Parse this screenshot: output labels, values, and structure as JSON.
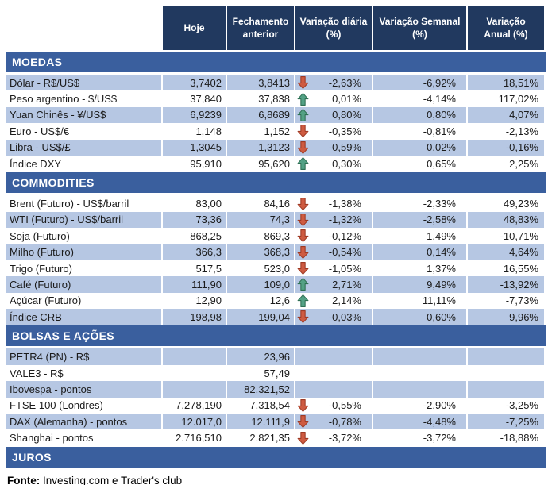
{
  "table": {
    "columns": [
      "Hoje",
      "Fechamento\nanterior",
      "Variação diária\n(%)",
      "Variação Semanal\n(%)",
      "Variação\nAnual (%)"
    ]
  },
  "sections": [
    {
      "title": "MOEDAS",
      "striped_first": true,
      "rows": [
        {
          "name": "Dólar - R$/US$",
          "hoje": "3,7402",
          "prev": "3,8413",
          "arrow": "down",
          "daily": "-2,63%",
          "weekly": "-6,92%",
          "annual": "18,51%"
        },
        {
          "name": "Peso argentino - $/US$",
          "hoje": "37,840",
          "prev": "37,838",
          "arrow": "up",
          "daily": "0,01%",
          "weekly": "-4,14%",
          "annual": "117,02%"
        },
        {
          "name": "Yuan Chinês - ¥/US$",
          "hoje": "6,9239",
          "prev": "6,8689",
          "arrow": "up",
          "daily": "0,80%",
          "weekly": "0,80%",
          "annual": "4,07%"
        },
        {
          "name": "Euro - US$/€",
          "hoje": "1,148",
          "prev": "1,152",
          "arrow": "down",
          "daily": "-0,35%",
          "weekly": "-0,81%",
          "annual": "-2,13%"
        },
        {
          "name": "Libra - US$/£",
          "hoje": "1,3045",
          "prev": "1,3123",
          "arrow": "down",
          "daily": "-0,59%",
          "weekly": "0,02%",
          "annual": "-0,16%"
        },
        {
          "name": "Índice DXY",
          "hoje": "95,910",
          "prev": "95,620",
          "arrow": "up",
          "daily": "0,30%",
          "weekly": "0,65%",
          "annual": "2,25%"
        }
      ]
    },
    {
      "title": "COMMODITIES",
      "striped_first": false,
      "rows": [
        {
          "name": "Brent (Futuro) - US$/barril",
          "hoje": "83,00",
          "prev": "84,16",
          "arrow": "down",
          "daily": "-1,38%",
          "weekly": "-2,33%",
          "annual": "49,23%"
        },
        {
          "name": "WTI (Futuro) - US$/barril",
          "hoje": "73,36",
          "prev": "74,3",
          "arrow": "down",
          "daily": "-1,32%",
          "weekly": "-2,58%",
          "annual": "48,83%"
        },
        {
          "name": "Soja (Futuro)",
          "hoje": "868,25",
          "prev": "869,3",
          "arrow": "down",
          "daily": "-0,12%",
          "weekly": "1,49%",
          "annual": "-10,71%"
        },
        {
          "name": "Milho (Futuro)",
          "hoje": "366,3",
          "prev": "368,3",
          "arrow": "down",
          "daily": "-0,54%",
          "weekly": "0,14%",
          "annual": "4,64%"
        },
        {
          "name": "Trigo (Futuro)",
          "hoje": "517,5",
          "prev": "523,0",
          "arrow": "down",
          "daily": "-1,05%",
          "weekly": "1,37%",
          "annual": "16,55%"
        },
        {
          "name": "Café (Futuro)",
          "hoje": "111,90",
          "prev": "109,0",
          "arrow": "up",
          "daily": "2,71%",
          "weekly": "9,49%",
          "annual": "-13,92%"
        },
        {
          "name": "Açúcar (Futuro)",
          "hoje": "12,90",
          "prev": "12,6",
          "arrow": "up",
          "daily": "2,14%",
          "weekly": "11,11%",
          "annual": "-7,73%"
        },
        {
          "name": "Índice CRB",
          "hoje": "198,98",
          "prev": "199,04",
          "arrow": "down",
          "daily": "-0,03%",
          "weekly": "0,60%",
          "annual": "9,96%"
        }
      ]
    },
    {
      "title": "BOLSAS E AÇÕES",
      "striped_first": true,
      "rows": [
        {
          "name": "PETR4 (PN) - R$",
          "hoje": "",
          "prev": "23,96",
          "arrow": null,
          "daily": "",
          "weekly": "",
          "annual": ""
        },
        {
          "name": "VALE3 - R$",
          "hoje": "",
          "prev": "57,49",
          "arrow": null,
          "daily": "",
          "weekly": "",
          "annual": ""
        },
        {
          "name": "Ibovespa - pontos",
          "hoje": "",
          "prev": "82.321,52",
          "arrow": null,
          "daily": "",
          "weekly": "",
          "annual": ""
        },
        {
          "name": "FTSE 100 (Londres)",
          "hoje": "7.278,190",
          "prev": "7.318,54",
          "arrow": "down",
          "daily": "-0,55%",
          "weekly": "-2,90%",
          "annual": "-3,25%"
        },
        {
          "name": "DAX (Alemanha) - pontos",
          "hoje": "12.017,0",
          "prev": "12.111,9",
          "arrow": "down",
          "daily": "-0,78%",
          "weekly": "-4,48%",
          "annual": "-7,25%"
        },
        {
          "name": "Shanghai - pontos",
          "hoje": "2.716,510",
          "prev": "2.821,35",
          "arrow": "down",
          "daily": "-3,72%",
          "weekly": "-3,72%",
          "annual": "-18,88%"
        }
      ]
    },
    {
      "title": "JUROS",
      "striped_first": true,
      "rows": []
    }
  ],
  "footer": {
    "label": "Fonte:",
    "text": " Investing.com e Trader's club"
  },
  "colors": {
    "header_bg": "#21395F",
    "section_bg": "#3A5F9E",
    "stripe_bg": "#B6C7E3",
    "up_arrow": "#53A185",
    "down_arrow": "#CE5B41"
  }
}
